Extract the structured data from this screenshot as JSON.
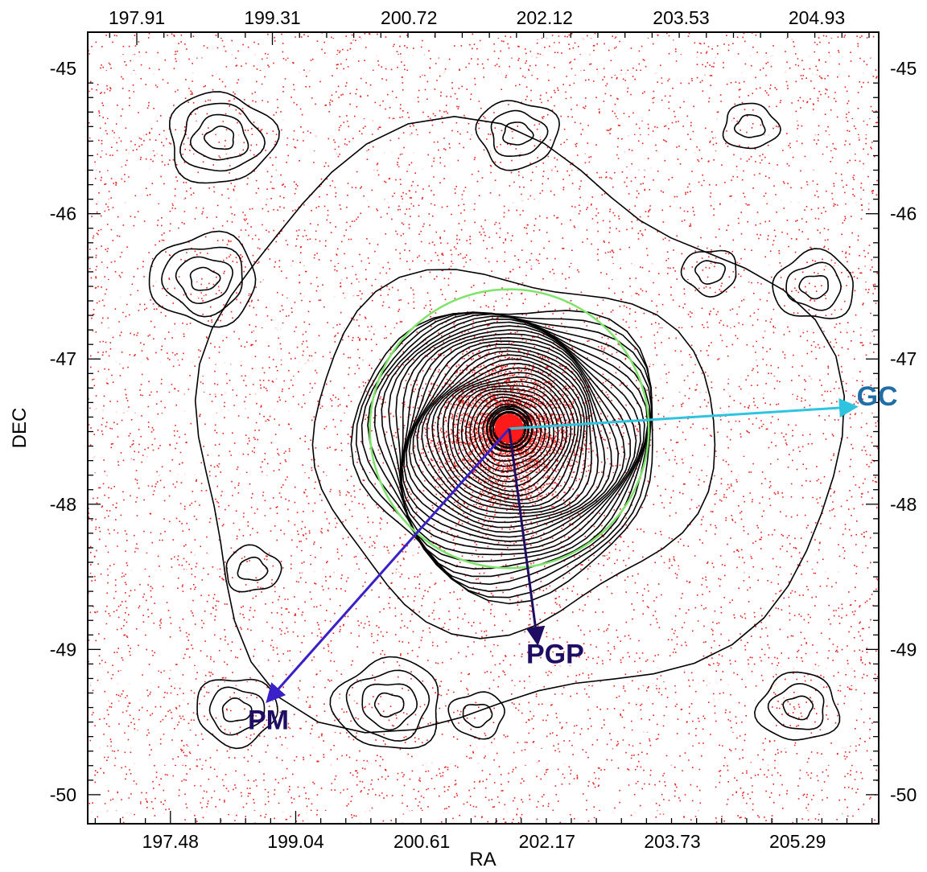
{
  "chart_data": {
    "type": "scatter",
    "title": "",
    "xlabel": "RA",
    "ylabel": "DEC",
    "xlim": [
      196.45,
      206.3
    ],
    "ylim": [
      -50.2,
      -44.75
    ],
    "x_ticks_bottom": [
      "197.48",
      "199.04",
      "200.61",
      "202.17",
      "203.73",
      "205.29"
    ],
    "x_ticks_top": [
      "197.91",
      "199.31",
      "200.72",
      "202.12",
      "203.53",
      "204.93"
    ],
    "y_ticks": [
      "-45",
      "-46",
      "-47",
      "-48",
      "-49",
      "-50"
    ],
    "y_ticks_right": [
      "-45",
      "-46",
      "-47",
      "-48",
      "-49",
      "-50"
    ],
    "grid": false,
    "legend": "none",
    "center": {
      "ra": 201.7,
      "dec": -47.48
    },
    "tidal_circle_radius_deg": 0.96,
    "contour_peaks": [
      {
        "ra": 201.7,
        "dec": -47.48
      },
      {
        "ra": 198.5,
        "dec": -48.45
      },
      {
        "ra": 198.3,
        "dec": -49.42
      },
      {
        "ra": 200.2,
        "dec": -49.38
      },
      {
        "ra": 201.3,
        "dec": -49.45
      },
      {
        "ra": 205.3,
        "dec": -49.4
      },
      {
        "ra": 198.1,
        "dec": -45.48
      },
      {
        "ra": 204.7,
        "dec": -45.4
      },
      {
        "ra": 201.8,
        "dec": -45.45
      },
      {
        "ra": 197.9,
        "dec": -46.45
      },
      {
        "ra": 204.2,
        "dec": -46.4
      },
      {
        "ra": 205.5,
        "dec": -46.5
      }
    ],
    "arrows": [
      {
        "label": "GC",
        "to": {
          "ra": 206.0,
          "dec": -47.33
        },
        "color": "#2ec4e0",
        "label_color": "#1f6fa6"
      },
      {
        "label": "PM",
        "to": {
          "ra": 198.7,
          "dec": -49.35
        },
        "color": "#3a20c8",
        "label_color": "#1e0d63"
      },
      {
        "label": "PGP",
        "to": {
          "ra": 202.05,
          "dec": -48.95
        },
        "color": "#1e0d63",
        "label_color": "#1e0d63"
      }
    ],
    "colors": {
      "stars": "#e8201c",
      "contours": "#000000",
      "tidal_circle": "#7ee36a",
      "core": "#ff1a1a"
    }
  }
}
